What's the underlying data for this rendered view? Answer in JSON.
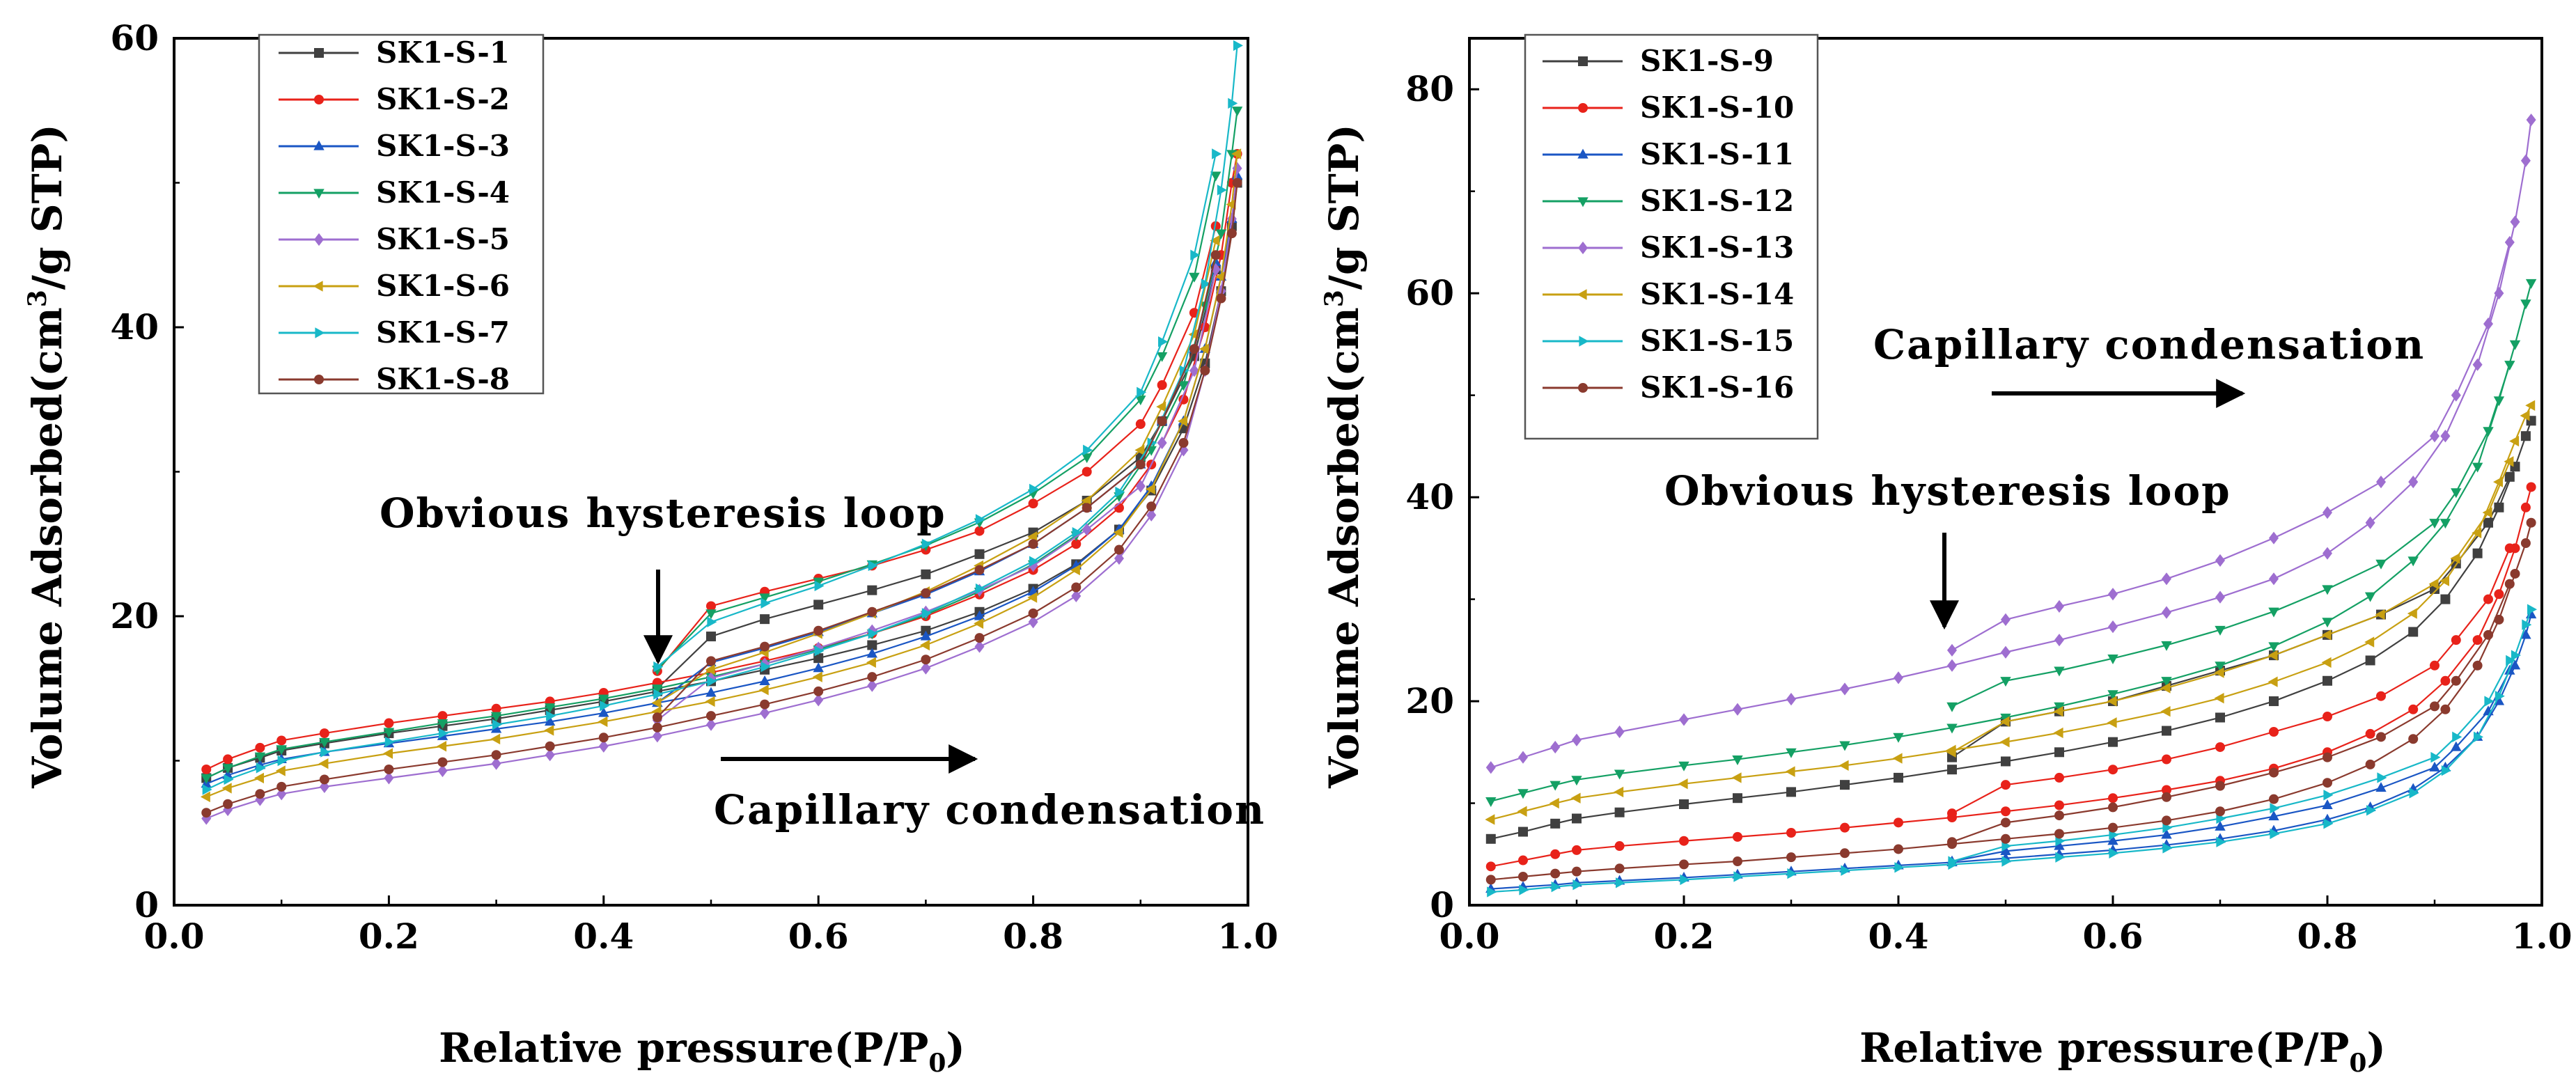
{
  "chart_data": [
    {
      "type": "line",
      "xlabel": "Relative pressure(P/P0)",
      "xlabel_main": "Relative pressure(P/P",
      "xlabel_sub": "0",
      "xlabel_end": ")",
      "ylabel": "Volume Adsorbed(cm3/g STP)",
      "ylabel_main": "Volume Adsorbed(cm",
      "ylabel_sup": "3",
      "ylabel_end": "/g STP)",
      "xlim": [
        0.0,
        1.0
      ],
      "ylim": [
        0,
        60
      ],
      "xticks": [
        "0.0",
        "0.2",
        "0.4",
        "0.6",
        "0.8",
        "1.0"
      ],
      "yticks": [
        "0",
        "20",
        "40",
        "60"
      ],
      "legend_position": "top-left",
      "x_adsorption": [
        0.03,
        0.05,
        0.08,
        0.1,
        0.14,
        0.2,
        0.25,
        0.3,
        0.35,
        0.4,
        0.45,
        0.5,
        0.55,
        0.6,
        0.65,
        0.7,
        0.75,
        0.8,
        0.84,
        0.88,
        0.91,
        0.94,
        0.96,
        0.975,
        0.985,
        0.99
      ],
      "x_desorption": [
        0.97,
        0.95,
        0.92,
        0.9,
        0.85,
        0.8,
        0.75,
        0.7,
        0.65,
        0.6,
        0.55,
        0.5,
        0.45
      ],
      "series": [
        {
          "name": "SK1-S-1",
          "color": "#404040",
          "marker": "square",
          "adsorption": [
            8.8,
            9.5,
            10.2,
            10.7,
            11.2,
            11.9,
            12.4,
            12.9,
            13.5,
            14.1,
            14.8,
            15.5,
            16.3,
            17.1,
            18.0,
            19.0,
            20.3,
            21.9,
            23.6,
            26.0,
            28.7,
            33.0,
            37.5,
            42.5,
            47.0,
            50.0
          ],
          "desorption": [
            44.0,
            38.0,
            33.5,
            31.0,
            28.0,
            25.8,
            24.3,
            22.9,
            21.8,
            20.8,
            19.8,
            18.6,
            15.0
          ]
        },
        {
          "name": "SK1-S-2",
          "color": "#e8221a",
          "marker": "circle",
          "adsorption": [
            9.4,
            10.1,
            10.9,
            11.4,
            11.9,
            12.6,
            13.1,
            13.6,
            14.1,
            14.7,
            15.4,
            16.1,
            16.9,
            17.8,
            18.8,
            20.0,
            21.5,
            23.2,
            25.0,
            27.5,
            30.5,
            35.0,
            40.0,
            45.0,
            50.0,
            52.0
          ],
          "desorption": [
            47.0,
            41.0,
            36.0,
            33.3,
            30.0,
            27.8,
            25.9,
            24.6,
            23.5,
            22.6,
            21.7,
            20.7,
            16.2
          ]
        },
        {
          "name": "SK1-S-3",
          "color": "#1a56c4",
          "marker": "triangle-up",
          "adsorption": [
            8.4,
            9.0,
            9.7,
            10.1,
            10.6,
            11.2,
            11.7,
            12.2,
            12.7,
            13.3,
            14.0,
            14.7,
            15.5,
            16.4,
            17.4,
            18.6,
            20.0,
            21.7,
            23.5,
            26.0,
            29.0,
            33.5,
            38.5,
            43.5,
            47.5,
            50.5
          ],
          "desorption": [
            44.5,
            38.5,
            33.5,
            30.5,
            27.5,
            25.0,
            23.1,
            21.5,
            20.2,
            18.9,
            17.8,
            16.8,
            14.0
          ]
        },
        {
          "name": "SK1-S-4",
          "color": "#14a064",
          "marker": "triangle-down",
          "adsorption": [
            8.8,
            9.5,
            10.3,
            10.8,
            11.3,
            12.0,
            12.6,
            13.1,
            13.7,
            14.3,
            15.0,
            15.8,
            16.7,
            17.7,
            18.8,
            20.1,
            21.7,
            23.6,
            25.6,
            28.3,
            31.5,
            36.0,
            41.5,
            46.5,
            52.0,
            55.0
          ],
          "desorption": [
            50.5,
            43.5,
            38.0,
            35.0,
            31.0,
            28.5,
            26.5,
            24.9,
            23.6,
            22.4,
            21.3,
            20.2,
            16.3
          ]
        },
        {
          "name": "SK1-S-5",
          "color": "#9e6ed0",
          "marker": "diamond",
          "adsorption": [
            6.0,
            6.6,
            7.3,
            7.7,
            8.2,
            8.8,
            9.3,
            9.8,
            10.4,
            11.0,
            11.7,
            12.5,
            13.3,
            14.2,
            15.2,
            16.4,
            17.9,
            19.6,
            21.4,
            24.0,
            27.0,
            31.5,
            37.0,
            42.5,
            47.5,
            51.0
          ],
          "desorption": [
            44.0,
            37.0,
            32.0,
            29.0,
            26.0,
            23.5,
            21.8,
            20.3,
            19.0,
            17.8,
            16.7,
            15.7,
            12.8
          ]
        },
        {
          "name": "SK1-S-6",
          "color": "#c8a012",
          "marker": "triangle-left",
          "adsorption": [
            7.5,
            8.1,
            8.8,
            9.3,
            9.8,
            10.5,
            11.0,
            11.5,
            12.1,
            12.7,
            13.4,
            14.1,
            14.9,
            15.8,
            16.8,
            18.0,
            19.5,
            21.3,
            23.2,
            25.8,
            28.8,
            33.5,
            38.5,
            43.5,
            48.5,
            52.0
          ],
          "desorption": [
            46.0,
            39.5,
            34.5,
            31.5,
            28.0,
            25.5,
            23.5,
            21.7,
            20.2,
            18.8,
            17.5,
            16.3,
            14.0
          ]
        },
        {
          "name": "SK1-S-7",
          "color": "#18b8c8",
          "marker": "triangle-right",
          "adsorption": [
            8.0,
            8.7,
            9.5,
            10.0,
            10.6,
            11.3,
            11.9,
            12.5,
            13.1,
            13.8,
            14.6,
            15.5,
            16.5,
            17.6,
            18.8,
            20.2,
            21.9,
            23.8,
            25.8,
            28.6,
            32.0,
            37.0,
            43.0,
            49.5,
            55.5,
            59.5
          ],
          "desorption": [
            52.0,
            45.0,
            39.0,
            35.5,
            31.5,
            28.8,
            26.7,
            25.0,
            23.5,
            22.1,
            20.9,
            19.6,
            16.5
          ]
        },
        {
          "name": "SK1-S-8",
          "color": "#8a3a2e",
          "marker": "circle",
          "adsorption": [
            6.4,
            7.0,
            7.7,
            8.2,
            8.7,
            9.4,
            9.9,
            10.4,
            11.0,
            11.6,
            12.3,
            13.1,
            13.9,
            14.8,
            15.8,
            17.0,
            18.5,
            20.2,
            22.0,
            24.6,
            27.6,
            32.0,
            37.0,
            42.0,
            46.5,
            50.0
          ],
          "desorption": [
            45.0,
            38.5,
            33.5,
            30.5,
            27.5,
            25.0,
            23.2,
            21.6,
            20.3,
            19.0,
            17.9,
            16.9,
            13.0
          ]
        }
      ],
      "annotations": {
        "hysteresis": "Obvious hysteresis loop",
        "capillary": "Capillary condensation"
      }
    },
    {
      "type": "line",
      "xlabel": "Relative pressure(P/P0)",
      "xlabel_main": "Relative pressure(P/P",
      "xlabel_sub": "0",
      "xlabel_end": ")",
      "ylabel": "Volume Adsorbed(cm3/g STP)",
      "ylabel_main": "Volume Adsorbed(cm",
      "ylabel_sup": "3",
      "ylabel_end": "/g STP)",
      "xlim": [
        0.0,
        1.0
      ],
      "ylim": [
        0,
        85
      ],
      "xticks": [
        "0.0",
        "0.2",
        "0.4",
        "0.6",
        "0.8",
        "1.0"
      ],
      "yticks": [
        "0",
        "20",
        "40",
        "60",
        "80"
      ],
      "legend_position": "top-left",
      "x_adsorption": [
        0.02,
        0.05,
        0.08,
        0.1,
        0.14,
        0.2,
        0.25,
        0.3,
        0.35,
        0.4,
        0.45,
        0.5,
        0.55,
        0.6,
        0.65,
        0.7,
        0.75,
        0.8,
        0.84,
        0.88,
        0.91,
        0.94,
        0.96,
        0.975,
        0.985,
        0.99
      ],
      "x_desorption": [
        0.97,
        0.95,
        0.92,
        0.9,
        0.85,
        0.8,
        0.75,
        0.7,
        0.65,
        0.6,
        0.55,
        0.5,
        0.45
      ],
      "series": [
        {
          "name": "SK1-S-9",
          "color": "#404040",
          "marker": "square",
          "adsorption": [
            6.5,
            7.2,
            8.0,
            8.5,
            9.1,
            9.9,
            10.5,
            11.1,
            11.8,
            12.5,
            13.3,
            14.1,
            15.0,
            16.0,
            17.1,
            18.4,
            20.0,
            22.0,
            24.0,
            26.8,
            30.0,
            34.5,
            39.0,
            43.0,
            46.0,
            47.5
          ],
          "desorption": [
            42.0,
            37.5,
            33.5,
            31.0,
            28.5,
            26.5,
            24.5,
            23.0,
            21.5,
            20.0,
            19.0,
            18.0,
            14.5
          ]
        },
        {
          "name": "SK1-S-10",
          "color": "#e8221a",
          "marker": "circle",
          "adsorption": [
            3.8,
            4.4,
            5.0,
            5.4,
            5.8,
            6.3,
            6.7,
            7.1,
            7.6,
            8.1,
            8.6,
            9.2,
            9.8,
            10.5,
            11.3,
            12.2,
            13.4,
            15.0,
            16.8,
            19.2,
            22.0,
            26.0,
            30.5,
            35.0,
            39.0,
            41.0
          ],
          "desorption": [
            35.0,
            30.0,
            26.0,
            23.5,
            20.5,
            18.5,
            17.0,
            15.5,
            14.3,
            13.3,
            12.5,
            11.8,
            9.0
          ]
        },
        {
          "name": "SK1-S-11",
          "color": "#1a56c4",
          "marker": "triangle-up",
          "adsorption": [
            1.6,
            1.8,
            2.0,
            2.2,
            2.4,
            2.7,
            3.0,
            3.3,
            3.6,
            3.9,
            4.2,
            4.6,
            5.0,
            5.4,
            5.9,
            6.5,
            7.3,
            8.4,
            9.6,
            11.4,
            13.5,
            16.5,
            20.0,
            23.5,
            26.5,
            28.5
          ],
          "desorption": [
            23.0,
            19.0,
            15.5,
            13.5,
            11.5,
            9.8,
            8.7,
            7.7,
            6.9,
            6.3,
            5.8,
            5.3,
            4.3
          ]
        },
        {
          "name": "SK1-S-12",
          "color": "#14a064",
          "marker": "triangle-down",
          "adsorption": [
            10.2,
            11.0,
            11.8,
            12.3,
            12.9,
            13.7,
            14.3,
            15.0,
            15.7,
            16.5,
            17.4,
            18.4,
            19.5,
            20.7,
            22.0,
            23.5,
            25.4,
            27.8,
            30.3,
            33.8,
            37.5,
            43.0,
            49.5,
            55.0,
            59.0,
            61.0
          ],
          "desorption": [
            53.0,
            46.5,
            40.5,
            37.5,
            33.5,
            31.0,
            28.8,
            27.0,
            25.5,
            24.2,
            23.0,
            22.0,
            19.5
          ]
        },
        {
          "name": "SK1-S-13",
          "color": "#9e6ed0",
          "marker": "diamond",
          "adsorption": [
            13.5,
            14.5,
            15.5,
            16.2,
            17.0,
            18.2,
            19.2,
            20.2,
            21.2,
            22.3,
            23.5,
            24.8,
            26.0,
            27.3,
            28.7,
            30.2,
            32.0,
            34.5,
            37.5,
            41.5,
            46.0,
            53.0,
            60.0,
            67.0,
            73.0,
            77.0
          ],
          "desorption": [
            65.0,
            57.0,
            50.0,
            46.0,
            41.5,
            38.5,
            36.0,
            33.8,
            32.0,
            30.5,
            29.3,
            28.0,
            25.0
          ]
        },
        {
          "name": "SK1-S-14",
          "color": "#c8a012",
          "marker": "triangle-left",
          "adsorption": [
            8.4,
            9.2,
            10.0,
            10.5,
            11.1,
            11.9,
            12.5,
            13.1,
            13.7,
            14.4,
            15.2,
            16.0,
            16.9,
            17.9,
            19.0,
            20.3,
            21.9,
            23.8,
            25.8,
            28.6,
            31.8,
            36.5,
            41.5,
            45.5,
            48.0,
            49.0
          ],
          "desorption": [
            43.5,
            38.5,
            34.0,
            31.5,
            28.5,
            26.5,
            24.5,
            22.8,
            21.3,
            20.0,
            19.0,
            18.0,
            15.0
          ]
        },
        {
          "name": "SK1-S-15",
          "color": "#18b8c8",
          "marker": "triangle-right",
          "adsorption": [
            1.3,
            1.5,
            1.8,
            2.0,
            2.2,
            2.5,
            2.8,
            3.1,
            3.4,
            3.7,
            4.0,
            4.3,
            4.7,
            5.1,
            5.6,
            6.2,
            7.0,
            8.0,
            9.3,
            11.0,
            13.2,
            16.5,
            20.5,
            24.5,
            27.5,
            29.0
          ],
          "desorption": [
            24.0,
            20.0,
            16.5,
            14.5,
            12.5,
            10.8,
            9.5,
            8.5,
            7.6,
            6.9,
            6.3,
            5.8,
            4.3
          ]
        },
        {
          "name": "SK1-S-16",
          "color": "#8a3a2e",
          "marker": "circle",
          "adsorption": [
            2.5,
            2.8,
            3.1,
            3.3,
            3.6,
            4.0,
            4.3,
            4.7,
            5.1,
            5.5,
            6.0,
            6.5,
            7.0,
            7.6,
            8.3,
            9.2,
            10.4,
            12.0,
            13.8,
            16.3,
            19.2,
            23.5,
            28.0,
            32.5,
            35.5,
            37.5
          ],
          "desorption": [
            31.5,
            26.5,
            22.0,
            19.5,
            16.5,
            14.5,
            13.0,
            11.7,
            10.6,
            9.6,
            8.8,
            8.1,
            6.2
          ]
        }
      ],
      "annotations": {
        "hysteresis": "Obvious hysteresis loop",
        "capillary": "Capillary condensation"
      }
    }
  ]
}
